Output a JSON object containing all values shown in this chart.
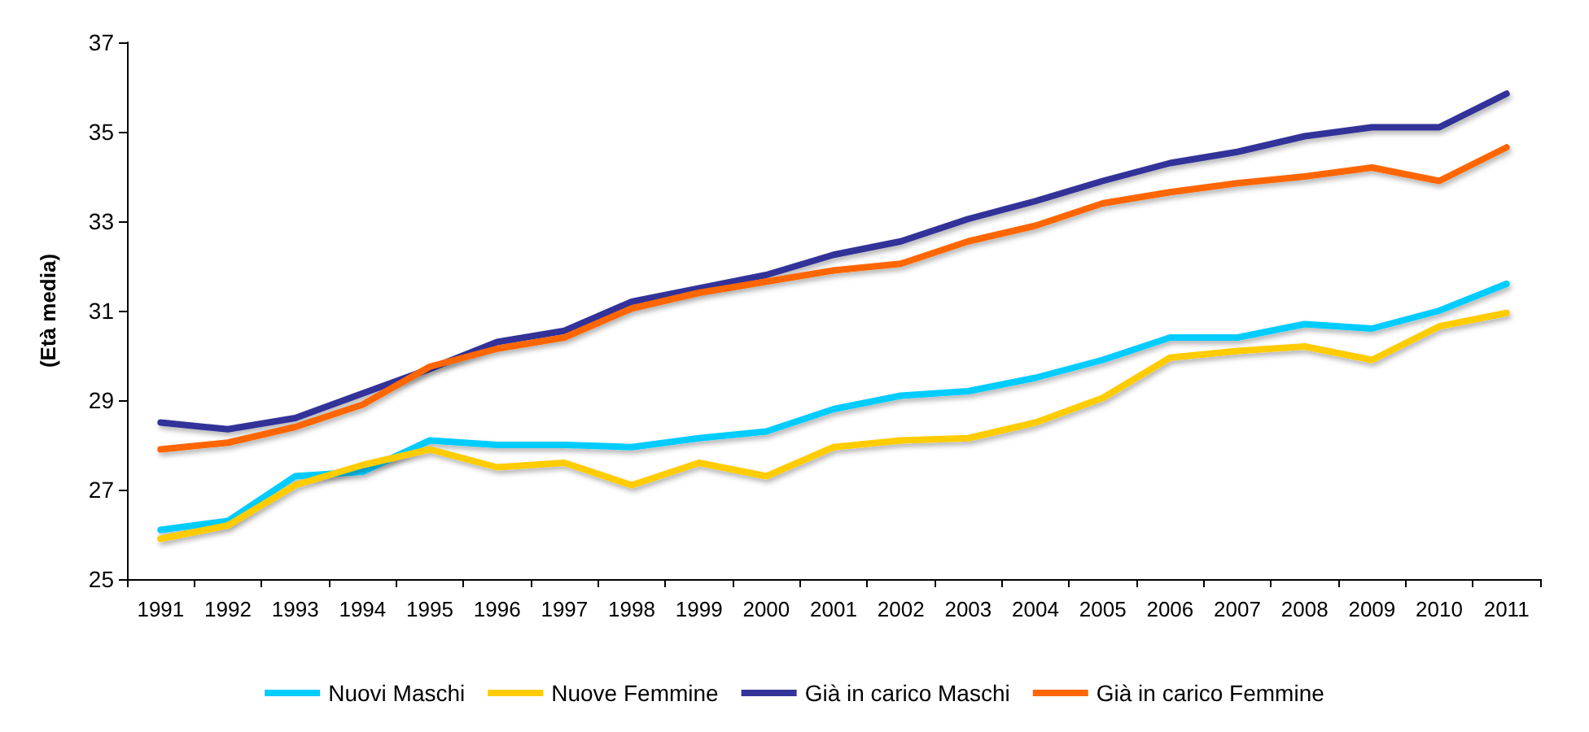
{
  "chart_data": {
    "type": "line",
    "ylabel": "(Età media)",
    "categories": [
      "1991",
      "1992",
      "1993",
      "1994",
      "1995",
      "1996",
      "1997",
      "1998",
      "1999",
      "2000",
      "2001",
      "2002",
      "2003",
      "2004",
      "2005",
      "2006",
      "2007",
      "2008",
      "2009",
      "2010",
      "2011"
    ],
    "series": [
      {
        "name": "Nuovi Maschi",
        "color": "#00ccff",
        "values": [
          26.1,
          26.3,
          27.3,
          27.4,
          28.1,
          28.0,
          28.0,
          27.95,
          28.15,
          28.3,
          28.8,
          29.1,
          29.2,
          29.5,
          29.9,
          30.4,
          30.4,
          30.7,
          30.6,
          31.0,
          31.6
        ]
      },
      {
        "name": "Nuove Femmine",
        "color": "#ffcc00",
        "values": [
          25.9,
          26.2,
          27.1,
          27.55,
          27.9,
          27.5,
          27.6,
          27.1,
          27.6,
          27.3,
          27.95,
          28.1,
          28.15,
          28.5,
          29.05,
          29.95,
          30.1,
          30.2,
          29.9,
          30.65,
          30.95
        ]
      },
      {
        "name": "Già in carico Maschi",
        "color": "#333399",
        "values": [
          28.5,
          28.35,
          28.6,
          29.15,
          29.7,
          30.3,
          30.55,
          31.2,
          31.5,
          31.8,
          32.25,
          32.55,
          33.05,
          33.45,
          33.9,
          34.3,
          34.55,
          34.9,
          35.1,
          35.1,
          35.85
        ]
      },
      {
        "name": "Già in carico Femmine",
        "color": "#ff6600",
        "values": [
          27.9,
          28.05,
          28.4,
          28.9,
          29.75,
          30.15,
          30.4,
          31.05,
          31.4,
          31.65,
          31.9,
          32.05,
          32.55,
          32.9,
          33.4,
          33.65,
          33.85,
          34.0,
          34.2,
          33.9,
          34.65
        ]
      }
    ],
    "ylim": [
      25,
      37
    ],
    "yticks": [
      25,
      27,
      29,
      31,
      33,
      35,
      37
    ],
    "grid": false,
    "legend": "bottom",
    "marker": "none",
    "line_style": "solid"
  }
}
